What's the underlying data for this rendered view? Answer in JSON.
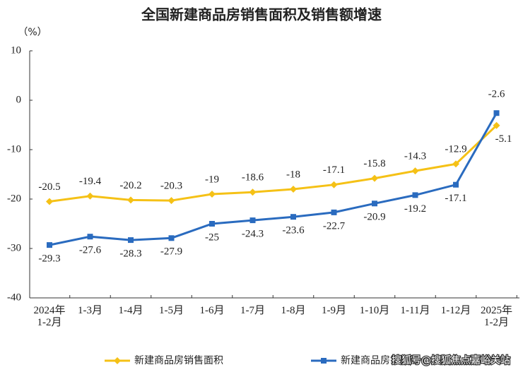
{
  "chart_data": {
    "type": "line",
    "title": "全国新建商品房销售面积及销售额增速",
    "y_label": "（%）",
    "categories": [
      "2024年\n1-2月",
      "1-3月",
      "1-4月",
      "1-5月",
      "1-6月",
      "1-7月",
      "1-8月",
      "1-9月",
      "1-10月",
      "1-11月",
      "1-12月",
      "2025年\n1-2月"
    ],
    "series": [
      {
        "name": "新建商品房销售面积",
        "color": "#f5c116",
        "marker": "diamond",
        "values": [
          -20.5,
          -19.4,
          -20.2,
          -20.3,
          -19.0,
          -18.6,
          -18.0,
          -17.1,
          -15.8,
          -14.3,
          -12.9,
          -5.1
        ]
      },
      {
        "name": "新建商品房销售额",
        "color": "#2a6bbf",
        "marker": "square",
        "values": [
          -29.3,
          -27.6,
          -28.3,
          -27.9,
          -25.0,
          -24.3,
          -23.6,
          -22.7,
          -20.9,
          -19.2,
          -17.1,
          -2.6
        ]
      }
    ],
    "ylim": [
      -40,
      10
    ],
    "yticks": [
      -40,
      -30,
      -20,
      -10,
      0,
      10
    ],
    "grid": false,
    "legend": "bottom",
    "watermark": "搜狐号@搜狐焦点嘉峪关站"
  }
}
